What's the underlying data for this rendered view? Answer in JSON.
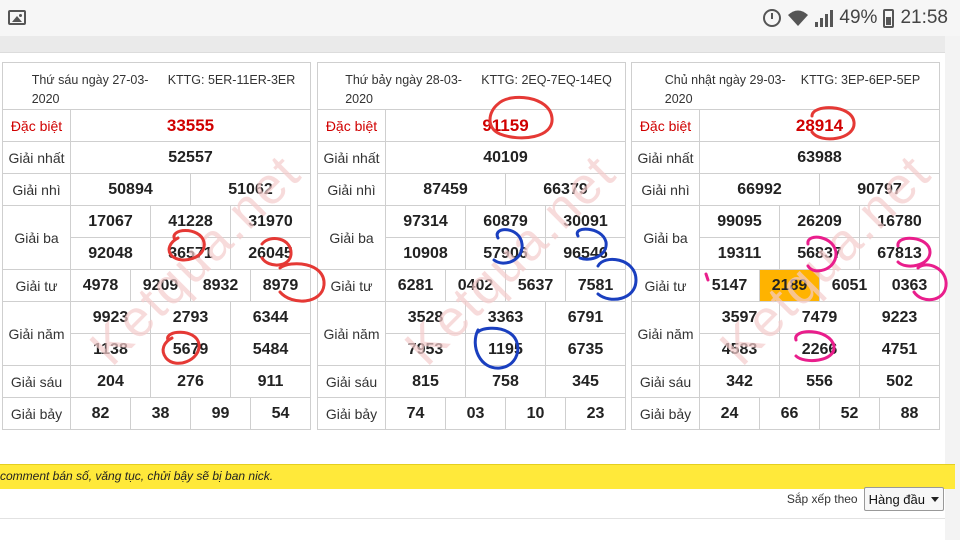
{
  "status_bar": {
    "battery": "49%",
    "time": "21:58"
  },
  "tables": [
    {
      "date": "Thứ sáu ngày 27-03-2020",
      "kttg": "KTTG: 5ER-11ER-3ER",
      "labels": {
        "db": "Đặc biệt",
        "g1": "Giải nhất",
        "g2": "Giải nhì",
        "g3": "Giải ba",
        "g4": "Giải tư",
        "g5": "Giải năm",
        "g6": "Giải sáu",
        "g7": "Giải bảy"
      },
      "db": "33555",
      "g1": "52557",
      "g2": [
        "50894",
        "51062"
      ],
      "g3": [
        "17067",
        "41228",
        "31970",
        "92048",
        "36571",
        "26045"
      ],
      "g4": [
        "4978",
        "9209",
        "8932",
        "8979"
      ],
      "g5": [
        "9923",
        "2793",
        "6344",
        "1138",
        "5679",
        "5484"
      ],
      "g6": [
        "204",
        "276",
        "911"
      ],
      "g7": [
        "82",
        "38",
        "99",
        "54"
      ]
    },
    {
      "date": "Thứ bảy ngày 28-03-2020",
      "kttg": "KTTG: 2EQ-7EQ-14EQ",
      "labels": {
        "db": "Đặc biệt",
        "g1": "Giải nhất",
        "g2": "Giải nhì",
        "g3": "Giải ba",
        "g4": "Giải tư",
        "g5": "Giải năm",
        "g6": "Giải sáu",
        "g7": "Giải bảy"
      },
      "db": "91159",
      "g1": "40109",
      "g2": [
        "87459",
        "66379"
      ],
      "g3": [
        "97314",
        "60879",
        "30091",
        "10908",
        "57906",
        "96546"
      ],
      "g4": [
        "6281",
        "0402",
        "5637",
        "7581"
      ],
      "g5": [
        "3528",
        "3363",
        "6791",
        "7953",
        "1195",
        "6735"
      ],
      "g6": [
        "815",
        "758",
        "345"
      ],
      "g7": [
        "74",
        "03",
        "10",
        "23"
      ]
    },
    {
      "date": "Chủ nhật ngày 29-03-2020",
      "kttg": "KTTG: 3EP-6EP-5EP",
      "labels": {
        "db": "Đặc biệt",
        "g1": "Giải nhất",
        "g2": "Giải nhì",
        "g3": "Giải ba",
        "g4": "Giải tư",
        "g5": "Giải năm",
        "g6": "Giải sáu",
        "g7": "Giải bảy"
      },
      "db": "28914",
      "g1": "63988",
      "g2": [
        "66992",
        "90797"
      ],
      "g3": [
        "99095",
        "26209",
        "16780",
        "19311",
        "56837",
        "67813"
      ],
      "g4": [
        "5147",
        "2189",
        "6051",
        "0363"
      ],
      "g5": [
        "3597",
        "7479",
        "9223",
        "4583",
        "2266",
        "4751"
      ],
      "g6": [
        "342",
        "556",
        "502"
      ],
      "g7": [
        "24",
        "66",
        "52",
        "88"
      ]
    }
  ],
  "highlight_color": "#ffb300",
  "notice": "comment bán số, văng tục, chửi bậy sẽ bị ban nick.",
  "sort": {
    "label": "Sắp xếp theo",
    "value": "Hàng đầu"
  }
}
